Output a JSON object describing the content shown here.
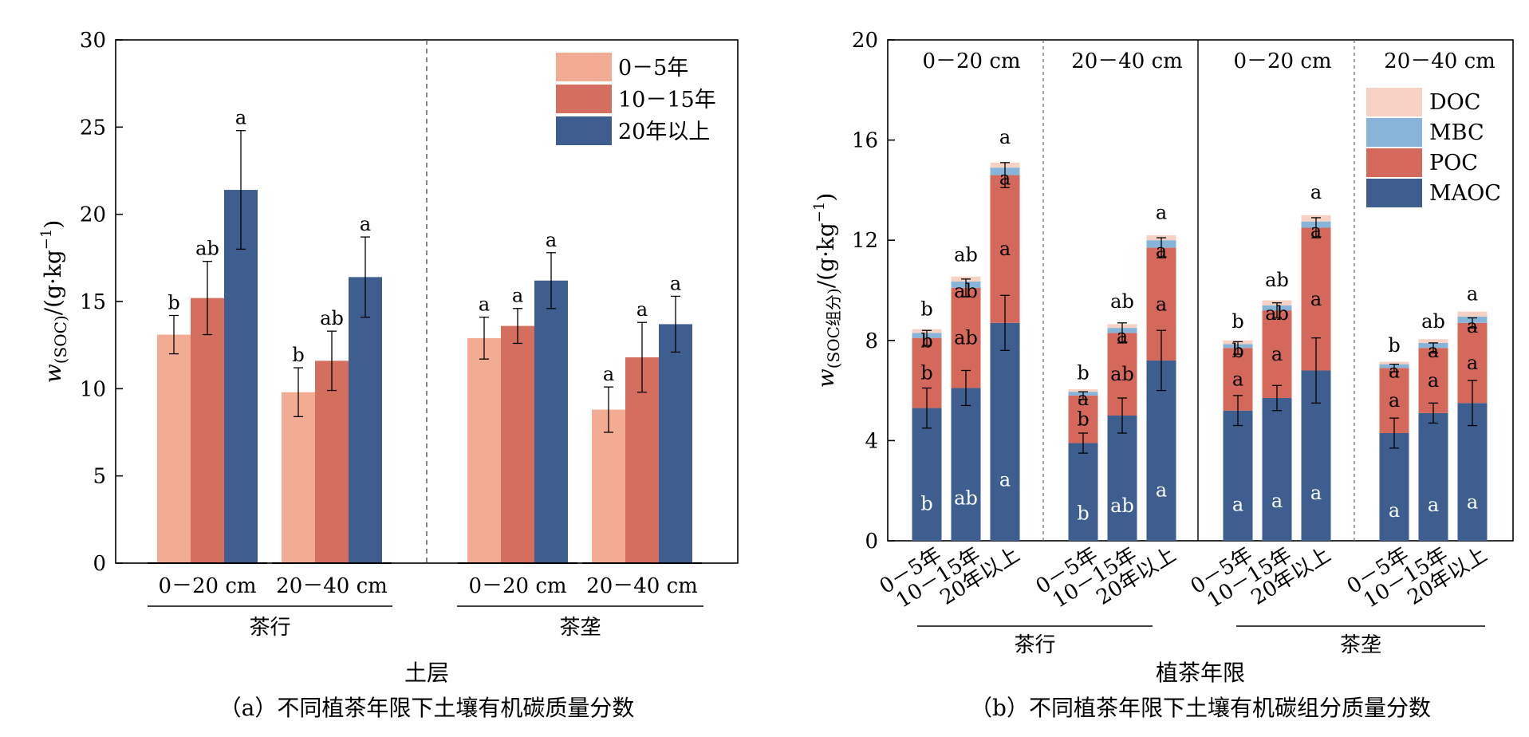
{
  "colors": {
    "light": "#F2AC94",
    "mid": "#D46E5E",
    "dark": "#3D5E8F",
    "doc": "#F6D2C5",
    "mbc": "#87B4D8",
    "poc": "#D4685A",
    "maoc": "#3D5E8F"
  },
  "chart_data": [
    {
      "type": "bar",
      "title": "",
      "caption": "（a）不同植茶年限下土壤有机碳质量分数",
      "xlabel": "土层",
      "ylabel_main": "w",
      "ylabel_sub": "(SOC)",
      "ylabel_unit": "/(g·kg",
      "ylabel_sup": "−1",
      "ylabel_close": ")",
      "ylim": [
        0,
        30
      ],
      "yticks": [
        "0",
        "5",
        "10",
        "15",
        "20",
        "25",
        "30"
      ],
      "legend": [
        "0－5年",
        "10－15年",
        "20年以上"
      ],
      "legend_position": "top-right",
      "groups": [
        {
          "position": "茶行",
          "depths": [
            {
              "depth": "0－20 cm",
              "values": [
                13.1,
                15.2,
                21.4
              ],
              "errors": [
                1.1,
                2.1,
                3.4
              ],
              "letters": [
                "b",
                "ab",
                "a"
              ]
            },
            {
              "depth": "20－40 cm",
              "values": [
                9.8,
                11.6,
                16.4
              ],
              "errors": [
                1.4,
                1.7,
                2.3
              ],
              "letters": [
                "b",
                "ab",
                "a"
              ]
            }
          ]
        },
        {
          "position": "茶垄",
          "depths": [
            {
              "depth": "0－20 cm",
              "values": [
                12.9,
                13.6,
                16.2
              ],
              "errors": [
                1.2,
                1.0,
                1.6
              ],
              "letters": [
                "a",
                "a",
                "a"
              ]
            },
            {
              "depth": "20－40 cm",
              "values": [
                8.8,
                11.8,
                13.7
              ],
              "errors": [
                1.3,
                2.0,
                1.6
              ],
              "letters": [
                "a",
                "a",
                "a"
              ]
            }
          ]
        }
      ]
    },
    {
      "type": "bar",
      "stacked": true,
      "title": "",
      "caption": "（b）不同植茶年限下土壤有机碳组分质量分数",
      "xlabel": "植茶年限",
      "ylabel_main": "w",
      "ylabel_sub": "(SOC组分)",
      "ylabel_unit": "/(g·kg",
      "ylabel_sup": "−1",
      "ylabel_close": ")",
      "ylim": [
        0,
        20
      ],
      "yticks": [
        "0",
        "4",
        "8",
        "12",
        "16",
        "20"
      ],
      "panel_labels": [
        "0－20 cm",
        "20－40 cm",
        "0－20 cm",
        "20－40 cm"
      ],
      "positions": [
        "茶行",
        "茶垄"
      ],
      "categories": [
        "0－5年",
        "10－15年",
        "20年以上"
      ],
      "legend": [
        "DOC",
        "MBC",
        "POC",
        "MAOC"
      ],
      "legend_position": "top-right",
      "panels": [
        {
          "MAOC": [
            5.3,
            6.1,
            8.7
          ],
          "POC": [
            2.8,
            4.0,
            5.9
          ],
          "MBC": [
            0.2,
            0.25,
            0.3
          ],
          "DOC": [
            0.15,
            0.2,
            0.2
          ],
          "maoc_err": [
            0.8,
            0.7,
            1.1
          ],
          "total_err": [
            0.3,
            0.35,
            0.5
          ],
          "letters_maoc": [
            "b",
            "ab",
            "a"
          ],
          "letters_poc": [
            "b",
            "ab",
            "a"
          ],
          "letters_mbc": [
            "b",
            "ab",
            "a"
          ],
          "letters_doc": [
            "b",
            "ab",
            "a"
          ]
        },
        {
          "MAOC": [
            3.9,
            5.0,
            7.2
          ],
          "POC": [
            1.9,
            3.3,
            4.5
          ],
          "MBC": [
            0.15,
            0.2,
            0.3
          ],
          "DOC": [
            0.1,
            0.15,
            0.2
          ],
          "maoc_err": [
            0.4,
            0.7,
            1.2
          ],
          "total_err": [
            0.15,
            0.4,
            0.4
          ],
          "letters_maoc": [
            "b",
            "ab",
            "a"
          ],
          "letters_poc": [
            "b",
            "ab",
            "a"
          ],
          "letters_mbc": [
            "a",
            "a",
            "a"
          ],
          "letters_doc": [
            "b",
            "ab",
            "a"
          ]
        },
        {
          "MAOC": [
            5.2,
            5.7,
            6.8
          ],
          "POC": [
            2.5,
            3.5,
            5.7
          ],
          "MBC": [
            0.15,
            0.2,
            0.25
          ],
          "DOC": [
            0.15,
            0.2,
            0.25
          ],
          "maoc_err": [
            0.6,
            0.5,
            1.3
          ],
          "total_err": [
            0.25,
            0.3,
            0.4
          ],
          "letters_maoc": [
            "a",
            "a",
            "a"
          ],
          "letters_poc": [
            "a",
            "a",
            "a"
          ],
          "letters_mbc": [
            "b",
            "ab",
            "a"
          ],
          "letters_doc": [
            "b",
            "ab",
            "a"
          ]
        },
        {
          "MAOC": [
            4.3,
            5.1,
            5.5
          ],
          "POC": [
            2.6,
            2.6,
            3.2
          ],
          "MBC": [
            0.15,
            0.2,
            0.25
          ],
          "DOC": [
            0.1,
            0.15,
            0.2
          ],
          "maoc_err": [
            0.6,
            0.4,
            0.9
          ],
          "total_err": [
            0.15,
            0.2,
            0.2
          ],
          "letters_maoc": [
            "a",
            "a",
            "a"
          ],
          "letters_poc": [
            "a",
            "a",
            "a"
          ],
          "letters_mbc": [
            "a",
            "a",
            "a"
          ],
          "letters_doc": [
            "b",
            "ab",
            "a"
          ]
        }
      ]
    }
  ]
}
